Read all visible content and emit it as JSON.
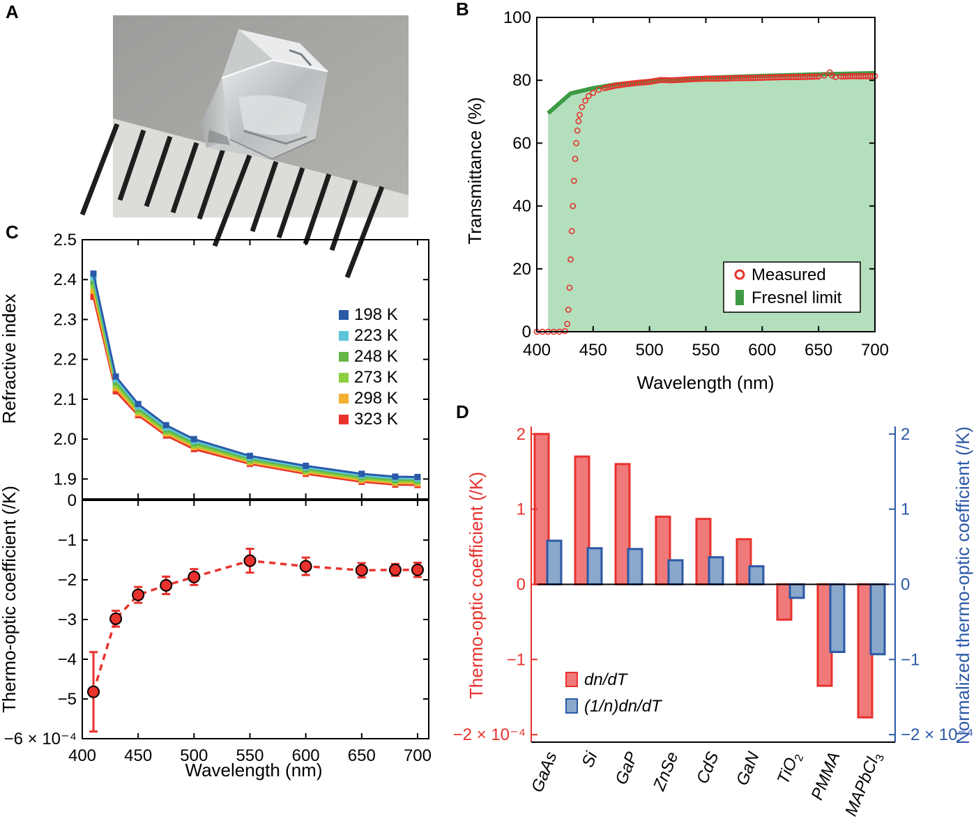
{
  "panels": {
    "A": {
      "letter": "A"
    },
    "B": {
      "letter": "B"
    },
    "C": {
      "letter": "C"
    },
    "D": {
      "letter": "D"
    }
  },
  "colors": {
    "red": "#e8322d",
    "green": "#3e9a45",
    "green_fill": "#b3dfbd",
    "blue": "#2c58a6",
    "blue_fill": "#8aa8cc",
    "red_fill": "#f07a7a",
    "temps": [
      "#2a5aa8",
      "#5cc6d6",
      "#63b548",
      "#8ccf3f",
      "#f2b02e",
      "#e8322d"
    ]
  },
  "chart_data": [
    {
      "id": "B",
      "type": "scatter",
      "xlabel": "Wavelength (nm)",
      "ylabel": "Transmittance (%)",
      "xlim": [
        400,
        700
      ],
      "ylim": [
        0,
        100
      ],
      "xticks": [
        400,
        450,
        500,
        550,
        600,
        650,
        700
      ],
      "yticks": [
        0,
        20,
        40,
        60,
        80,
        100
      ],
      "legend_position": "bottom-right",
      "series": [
        {
          "name": "Measured",
          "style": "open-circles",
          "x": [
            400,
            405,
            410,
            415,
            420,
            425,
            427,
            428,
            429,
            430,
            431,
            432,
            433,
            434,
            435,
            436,
            437,
            438,
            440,
            443,
            446,
            450,
            455,
            460,
            470,
            480,
            490,
            500,
            510,
            520,
            530,
            540,
            550,
            560,
            570,
            580,
            590,
            600,
            610,
            620,
            630,
            640,
            650,
            655,
            660,
            662,
            665,
            670,
            680,
            690,
            700
          ],
          "y": [
            0,
            0,
            0,
            0,
            0,
            0.2,
            2.5,
            7,
            14,
            23,
            32,
            40,
            48,
            55,
            60,
            64,
            67,
            69,
            71.5,
            73.5,
            75,
            76,
            77,
            77.5,
            78.3,
            78.8,
            79.2,
            79.5,
            80.1,
            80,
            80.2,
            80.4,
            80.5,
            80.5,
            80.6,
            80.7,
            80.7,
            80.8,
            80.9,
            81,
            81,
            81.1,
            81.2,
            81.5,
            82.5,
            81.5,
            81,
            81.2,
            81.3,
            81.3,
            81.3
          ]
        },
        {
          "name": "Fresnel limit",
          "style": "filled-area",
          "x": [
            410,
            430,
            450,
            470,
            500,
            550,
            600,
            650,
            700
          ],
          "y": [
            69.5,
            75.8,
            77.5,
            78.7,
            79.8,
            80.8,
            81.4,
            81.9,
            82.3
          ]
        }
      ]
    },
    {
      "id": "C-top",
      "type": "line",
      "ylabel": "Refractive index",
      "xlim": [
        400,
        710
      ],
      "ylim": [
        1.85,
        2.5
      ],
      "yticks": [
        1.9,
        2.0,
        2.1,
        2.2,
        2.3,
        2.4,
        2.5
      ],
      "ytick_labels": [
        "1.9",
        "2.0",
        "2.1",
        "2.2",
        "2.3",
        "2.4",
        "2.5"
      ],
      "x": [
        410,
        430,
        450,
        475,
        500,
        550,
        600,
        650,
        680,
        700
      ],
      "legend_position": "top-right",
      "series": [
        {
          "name": "198 K",
          "values": [
            2.415,
            2.157,
            2.088,
            2.035,
            2.0,
            1.958,
            1.933,
            1.913,
            1.906,
            1.905
          ]
        },
        {
          "name": "223 K",
          "values": [
            2.405,
            2.15,
            2.082,
            2.029,
            1.995,
            1.954,
            1.929,
            1.909,
            1.902,
            1.901
          ]
        },
        {
          "name": "248 K",
          "values": [
            2.395,
            2.143,
            2.076,
            2.024,
            1.99,
            1.95,
            1.925,
            1.905,
            1.898,
            1.897
          ]
        },
        {
          "name": "273 K",
          "values": [
            2.385,
            2.136,
            2.07,
            2.019,
            1.985,
            1.946,
            1.921,
            1.901,
            1.894,
            1.893
          ]
        },
        {
          "name": "298 K",
          "values": [
            2.372,
            2.128,
            2.065,
            2.014,
            1.98,
            1.942,
            1.917,
            1.897,
            1.89,
            1.889
          ]
        },
        {
          "name": "323 K",
          "values": [
            2.357,
            2.12,
            2.06,
            2.009,
            1.975,
            1.938,
            1.913,
            1.893,
            1.886,
            1.885
          ]
        }
      ]
    },
    {
      "id": "C-bottom",
      "type": "line",
      "xlabel": "Wavelength (nm)",
      "ylabel": "Thermo-optic coefficient (/K)",
      "xlim": [
        400,
        710
      ],
      "ylim": [
        -6,
        0
      ],
      "xticks": [
        400,
        450,
        500,
        550,
        600,
        650,
        700
      ],
      "yticks": [
        -6,
        -5,
        -4,
        -3,
        -2,
        -1,
        0
      ],
      "ytick_labels": [
        "−6 × 10⁻⁴",
        "−5",
        "−4",
        "−3",
        "−2",
        "−1",
        "0"
      ],
      "x": [
        410,
        430,
        450,
        475,
        500,
        550,
        600,
        650,
        680,
        700
      ],
      "values": [
        -4.82,
        -2.98,
        -2.38,
        -2.14,
        -1.93,
        -1.52,
        -1.66,
        -1.76,
        -1.75,
        -1.75
      ],
      "errors": [
        1.0,
        0.2,
        0.2,
        0.22,
        0.2,
        0.3,
        0.22,
        0.18,
        0.15,
        0.18
      ]
    },
    {
      "id": "D",
      "type": "bar",
      "ylabel": "Thermo-optic coefficient (/K)",
      "ylabel_right": "Normalized thermo-optic coefficient (/K)",
      "ylim": [
        -2.1,
        2.1
      ],
      "yticks": [
        -2,
        -1,
        0,
        1,
        2
      ],
      "ytick_labels": [
        "−2 × 10⁻⁴",
        "−1",
        "0",
        "1",
        "2"
      ],
      "categories": [
        "GaAs",
        "Si",
        "GaP",
        "ZnSe",
        "CdS",
        "GaN",
        "TiO",
        "PMMA",
        "MAPbCl"
      ],
      "category_subscripts": [
        "",
        "",
        "",
        "",
        "",
        "",
        "2",
        "",
        "3"
      ],
      "legend_position": "bottom-left",
      "series": [
        {
          "name": "dn/dT",
          "values": [
            2.0,
            1.7,
            1.6,
            0.9,
            0.87,
            0.6,
            -0.47,
            -1.35,
            -1.77
          ]
        },
        {
          "name": "(1/n)dn/dT",
          "values": [
            0.58,
            0.48,
            0.47,
            0.32,
            0.36,
            0.24,
            -0.18,
            -0.9,
            -0.93
          ]
        }
      ]
    }
  ]
}
